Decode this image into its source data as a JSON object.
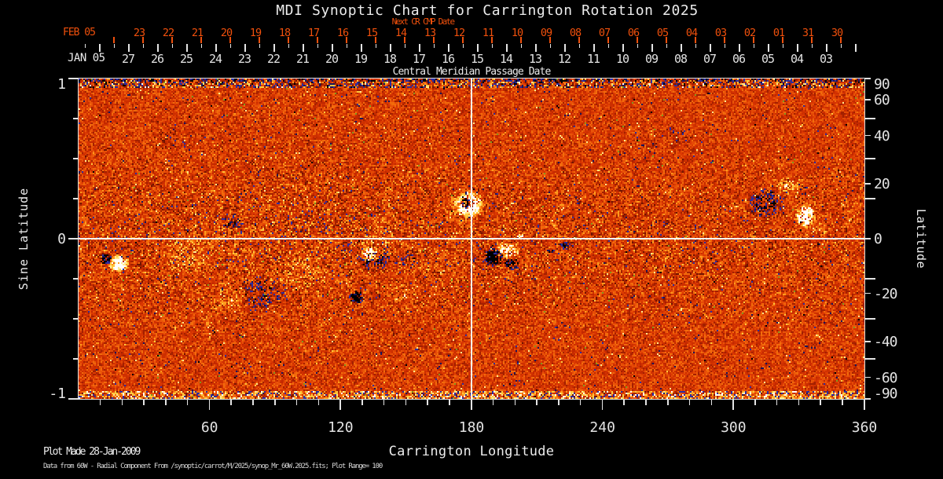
{
  "title": "MDI Synoptic Chart for Carrington Rotation 2025",
  "axes": {
    "top_red": {
      "name": "Next CR CMP Date",
      "month_label": "FEB 05",
      "day_labels": [
        "23",
        "22",
        "21",
        "20",
        "19",
        "18",
        "17",
        "16",
        "15",
        "14",
        "13",
        "12",
        "11",
        "10",
        "09",
        "08",
        "07",
        "06",
        "05",
        "04",
        "03",
        "02",
        "01",
        "31",
        "30"
      ]
    },
    "top_white": {
      "name": "Central Meridian Passage Date",
      "month_label": "JAN 05",
      "day_labels": [
        "27",
        "26",
        "25",
        "24",
        "23",
        "22",
        "21",
        "20",
        "19",
        "18",
        "17",
        "16",
        "15",
        "14",
        "13",
        "12",
        "11",
        "10",
        "09",
        "08",
        "07",
        "06",
        "05",
        "04",
        "03"
      ]
    },
    "left": {
      "label": "Sine Latitude",
      "tick_labels": [
        "1",
        "0",
        "-1"
      ],
      "tick_values": [
        1,
        0,
        -1
      ],
      "minor_sines": [
        0.75,
        0.5,
        0.25,
        -0.25,
        -0.5,
        -0.75
      ]
    },
    "right": {
      "label": "Latitude",
      "ticks": [
        {
          "label": "90",
          "sin": 1.0
        },
        {
          "label": "60",
          "sin": 0.866
        },
        {
          "label": "40",
          "sin": 0.643
        },
        {
          "label": "20",
          "sin": 0.342
        },
        {
          "label": "0",
          "sin": 0.0
        },
        {
          "label": "-20",
          "sin": -0.342
        },
        {
          "label": "-40",
          "sin": -0.643
        },
        {
          "label": "-60",
          "sin": -0.866
        },
        {
          "label": "-90",
          "sin": -1.0
        }
      ],
      "minor_sines": [
        0.75,
        0.5,
        0.25,
        -0.25,
        -0.5,
        -0.75
      ]
    },
    "bottom": {
      "label": "Carrington Longitude",
      "tick_labels": [
        "60",
        "120",
        "180",
        "240",
        "300",
        "360"
      ],
      "tick_values": [
        60,
        120,
        180,
        240,
        300,
        360
      ]
    }
  },
  "footer": {
    "line1": "Plot Made 28-Jan-2009",
    "line2": "Data from 60W - Radial Component From /synoptic/carrot/M/2025/synop_Mr_60W.2025.fits; Plot Range=  100"
  },
  "colors": {
    "background": "#000000",
    "accent_red": "#f0500c",
    "text": "#ececec",
    "frame": "#dedede",
    "field_base_red": "#d93502",
    "field_positive_strong": "#ffffff",
    "field_positive_mid": "#ffc93f",
    "field_negative_mid": "#2c2ca0",
    "field_negative_strong": "#000000"
  },
  "chart_data": {
    "type": "heatmap",
    "title": "MDI Synoptic Chart for Carrington Rotation 2025",
    "xlabel": "Carrington Longitude",
    "ylabel_left": "Sine Latitude",
    "ylabel_right": "Latitude",
    "x_range": [
      0,
      360
    ],
    "x_major_ticks": [
      60,
      120,
      180,
      240,
      300,
      360
    ],
    "x_minor_step": 10,
    "y_range_sine": [
      -1,
      1
    ],
    "left_ticks_sine": [
      1,
      0,
      -1
    ],
    "right_ticks_deg": [
      90,
      60,
      40,
      20,
      0,
      -20,
      -40,
      -60,
      -90
    ],
    "plot_range_gauss": 100,
    "crosshair": {
      "longitude": 180,
      "sine_latitude": 0
    },
    "colormap": "red quiet-sun background; positive flux orange-yellow-white; negative flux dark red-blue-black",
    "legend_position": "none",
    "grid": "crosshair only",
    "features": [
      {
        "lon": 178.5,
        "sin": 0.22,
        "lat_deg": 12.7,
        "rx_lon": 7.2,
        "ry_sin": 0.09,
        "amp": 1.9,
        "density": 0.9,
        "note": "large active region white plage"
      },
      {
        "lon": 177.8,
        "sin": 0.23,
        "lat_deg": 13.3,
        "rx_lon": 3.6,
        "ry_sin": 0.042,
        "amp": -3.6,
        "density": 0.92,
        "note": "black core of central AR"
      },
      {
        "lon": 195.8,
        "sin": -0.07,
        "lat_deg": -4.0,
        "rx_lon": 6.5,
        "ry_sin": 0.06,
        "amp": 1.5,
        "density": 0.6,
        "note": "white part of AR pair SE of center"
      },
      {
        "lon": 190.0,
        "sin": -0.11,
        "lat_deg": -6.3,
        "rx_lon": 5.0,
        "ry_sin": 0.06,
        "amp": -2.6,
        "density": 0.8,
        "note": "black part"
      },
      {
        "lon": 198.0,
        "sin": -0.15,
        "lat_deg": -8.6,
        "rx_lon": 3.6,
        "ry_sin": 0.04,
        "amp": -2.2,
        "density": 0.7,
        "note": "black blob"
      },
      {
        "lon": 202.0,
        "sin": 0.02,
        "lat_deg": 1.1,
        "rx_lon": 2.2,
        "ry_sin": 0.02,
        "amp": 1.6,
        "density": 0.7,
        "note": "small white point"
      },
      {
        "lon": 133.0,
        "sin": -0.09,
        "lat_deg": -5.2,
        "rx_lon": 4.3,
        "ry_sin": 0.05,
        "amp": 1.8,
        "density": 0.8,
        "note": "white core mid-left AR"
      },
      {
        "lon": 135.0,
        "sin": -0.12,
        "lat_deg": -6.9,
        "rx_lon": 8.0,
        "ry_sin": 0.09,
        "amp": -1.2,
        "density": 0.4,
        "note": "black speckle ring"
      },
      {
        "lon": 127.0,
        "sin": -0.36,
        "lat_deg": -21.1,
        "rx_lon": 3.6,
        "ry_sin": 0.05,
        "amp": -2.2,
        "density": 0.8,
        "note": "small black spot"
      },
      {
        "lon": 18.0,
        "sin": -0.15,
        "lat_deg": -8.6,
        "rx_lon": 5.0,
        "ry_sin": 0.06,
        "amp": 1.9,
        "density": 0.85,
        "note": "white blob far left"
      },
      {
        "lon": 12.2,
        "sin": -0.12,
        "lat_deg": -6.9,
        "rx_lon": 2.9,
        "ry_sin": 0.04,
        "amp": -2.3,
        "density": 0.75,
        "note": "black companion"
      },
      {
        "lon": 314.6,
        "sin": 0.22,
        "lat_deg": 12.7,
        "rx_lon": 9.4,
        "ry_sin": 0.1,
        "amp": -1.25,
        "density": 0.5,
        "note": "black cluster right side"
      },
      {
        "lon": 332.6,
        "sin": 0.15,
        "lat_deg": 8.6,
        "rx_lon": 5.0,
        "ry_sin": 0.08,
        "amp": 2.0,
        "density": 0.8,
        "note": "bright white blob right side"
      },
      {
        "lon": 325.0,
        "sin": 0.33,
        "lat_deg": 19.3,
        "rx_lon": 7.2,
        "ry_sin": 0.07,
        "amp": 0.8,
        "density": 0.45,
        "note": "yellow plage"
      },
      {
        "lon": 84.0,
        "sin": -0.34,
        "lat_deg": -19.9,
        "rx_lon": 12.2,
        "ry_sin": 0.13,
        "amp": -0.95,
        "density": 0.33,
        "note": "dark speckle cluster"
      },
      {
        "lon": 70.0,
        "sin": 0.11,
        "lat_deg": 6.3,
        "rx_lon": 5.8,
        "ry_sin": 0.06,
        "amp": -1.15,
        "density": 0.42,
        "note": "black speckles"
      },
      {
        "lon": 50.4,
        "sin": -0.1,
        "lat_deg": -5.7,
        "rx_lon": 13.7,
        "ry_sin": 0.14,
        "amp": 0.55,
        "density": 0.45,
        "note": "yellow network"
      },
      {
        "lon": 68.4,
        "sin": -0.37,
        "lat_deg": -21.7,
        "rx_lon": 10.0,
        "ry_sin": 0.1,
        "amp": 0.5,
        "density": 0.4,
        "note": "yellow network"
      },
      {
        "lon": 100.8,
        "sin": -0.2,
        "lat_deg": -11.5,
        "rx_lon": 15.8,
        "ry_sin": 0.14,
        "amp": 0.45,
        "density": 0.35,
        "note": "yellow network"
      },
      {
        "lon": 136.8,
        "sin": -0.02,
        "lat_deg": -1.1,
        "rx_lon": 9.4,
        "ry_sin": 0.09,
        "amp": 0.55,
        "density": 0.42,
        "note": "yellow network"
      },
      {
        "lon": 175.0,
        "sin": 0.18,
        "lat_deg": 10.4,
        "rx_lon": 10.0,
        "ry_sin": 0.11,
        "amp": 0.5,
        "density": 0.38,
        "note": "yellow halo around central AR"
      },
      {
        "lon": 273.6,
        "sin": 0.65,
        "lat_deg": 40.5,
        "rx_lon": 8.0,
        "ry_sin": 0.07,
        "amp": -0.6,
        "density": 0.25,
        "note": "faint dark speckles NE"
      },
      {
        "lon": 223.0,
        "sin": -0.04,
        "lat_deg": -2.3,
        "rx_lon": 2.9,
        "ry_sin": 0.03,
        "amp": -1.5,
        "density": 0.5,
        "note": "small black dots"
      },
      {
        "lon": 216.0,
        "sin": -0.07,
        "lat_deg": -4.0,
        "rx_lon": 2.2,
        "ry_sin": 0.02,
        "amp": -1.5,
        "density": 0.45,
        "note": "small black dots"
      },
      {
        "lon": 147.6,
        "sin": -0.34,
        "lat_deg": -19.9,
        "rx_lon": 7.2,
        "ry_sin": 0.07,
        "amp": 0.45,
        "density": 0.35,
        "note": "yellow network"
      },
      {
        "lon": 151.0,
        "sin": -0.13,
        "lat_deg": -7.5,
        "rx_lon": 6.5,
        "ry_sin": 0.07,
        "amp": -0.8,
        "density": 0.25,
        "note": "blue speckles"
      },
      {
        "lon": 338.0,
        "sin": 0.07,
        "lat_deg": 4.0,
        "rx_lon": 5.8,
        "ry_sin": 0.05,
        "amp": 0.6,
        "density": 0.4,
        "note": "yellow patch"
      },
      {
        "lon": 43.0,
        "sin": 0.61,
        "lat_deg": 37.6,
        "rx_lon": 10.0,
        "ry_sin": 0.09,
        "amp": -0.5,
        "density": 0.18,
        "note": "faint dark speckles NW"
      }
    ]
  }
}
